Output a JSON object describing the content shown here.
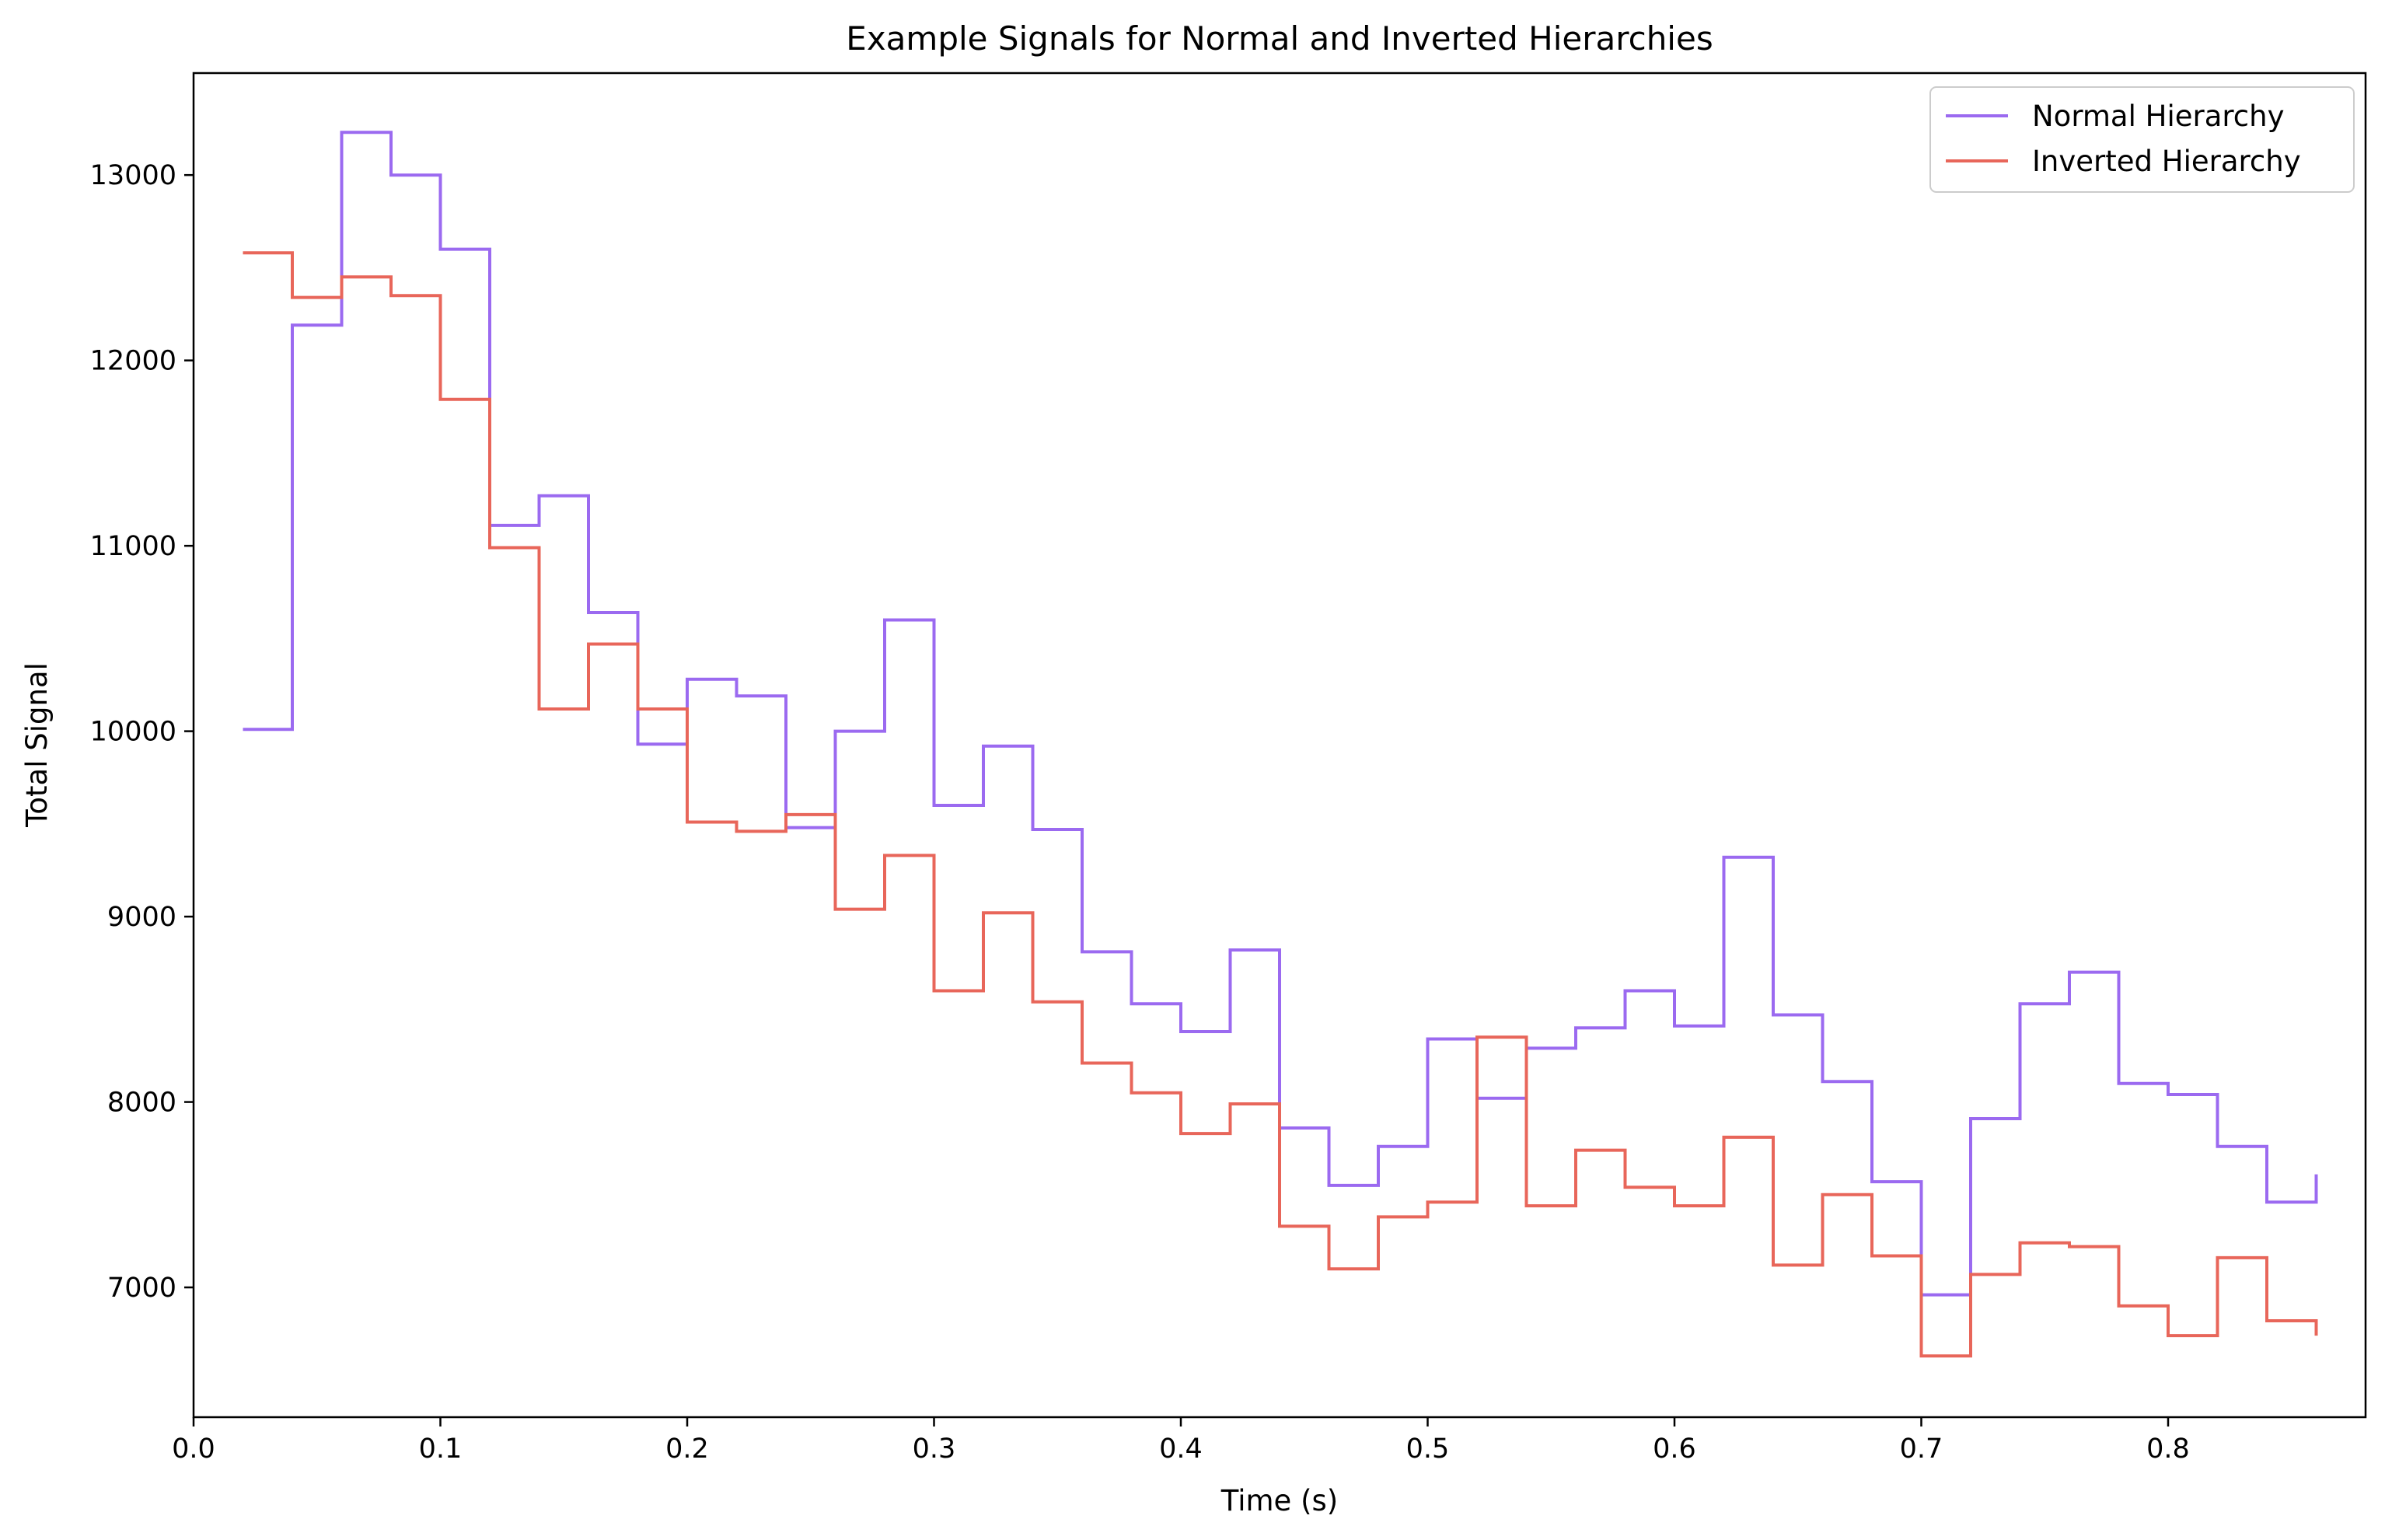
{
  "chart_data": {
    "type": "line",
    "step": "post",
    "title": "Example Signals for Normal and Inverted Hierarchies",
    "xlabel": "Time (s)",
    "ylabel": "Total Signal",
    "xlim": [
      0.0,
      0.88
    ],
    "ylim": [
      6300,
      13550
    ],
    "xticks": [
      0.0,
      0.1,
      0.2,
      0.3,
      0.4,
      0.5,
      0.6,
      0.7,
      0.8
    ],
    "xtick_labels": [
      "0.0",
      "0.1",
      "0.2",
      "0.3",
      "0.4",
      "0.5",
      "0.6",
      "0.7",
      "0.8"
    ],
    "yticks": [
      7000,
      8000,
      9000,
      10000,
      11000,
      12000,
      13000
    ],
    "ytick_labels": [
      "7000",
      "8000",
      "9000",
      "10000",
      "11000",
      "12000",
      "13000"
    ],
    "grid": false,
    "legend_position": "top-right",
    "x": [
      0.02,
      0.04,
      0.06,
      0.08,
      0.1,
      0.12,
      0.14,
      0.16,
      0.18,
      0.2,
      0.22,
      0.24,
      0.26,
      0.28,
      0.3,
      0.32,
      0.34,
      0.36,
      0.38,
      0.4,
      0.42,
      0.44,
      0.46,
      0.48,
      0.5,
      0.52,
      0.54,
      0.56,
      0.58,
      0.6,
      0.62,
      0.64,
      0.66,
      0.68,
      0.7,
      0.72,
      0.74,
      0.76,
      0.78,
      0.8,
      0.82,
      0.84,
      0.86
    ],
    "series": [
      {
        "name": "Normal Hierarchy",
        "color": "#9b6af0",
        "values": [
          10010,
          12190,
          13230,
          13000,
          12600,
          11110,
          11270,
          10640,
          9930,
          10280,
          10190,
          9480,
          10000,
          10600,
          9600,
          9920,
          9470,
          8810,
          8530,
          8380,
          8820,
          7860,
          7550,
          7760,
          8340,
          8020,
          8290,
          8400,
          8600,
          8410,
          9320,
          8470,
          8110,
          7570,
          6960,
          7910,
          8530,
          8700,
          8100,
          8040,
          7760,
          7460,
          7610
        ]
      },
      {
        "name": "Inverted Hierarchy",
        "color": "#e8665a",
        "values": [
          12580,
          12340,
          12450,
          12350,
          11790,
          10990,
          10120,
          10470,
          10120,
          9510,
          9460,
          9550,
          9040,
          9330,
          8600,
          9020,
          8540,
          8210,
          8050,
          7830,
          7990,
          7330,
          7100,
          7380,
          7460,
          8350,
          7440,
          7740,
          7540,
          7440,
          7810,
          7120,
          7500,
          7170,
          6630,
          7070,
          7240,
          7220,
          6900,
          6740,
          7160,
          6820,
          6740
        ]
      }
    ]
  }
}
